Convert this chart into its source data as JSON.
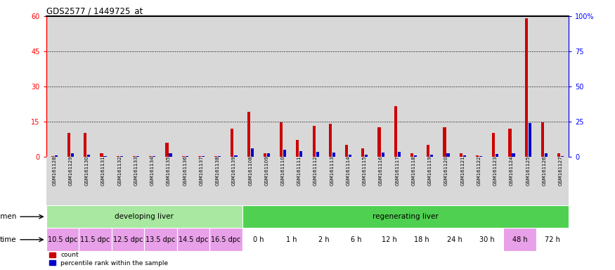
{
  "title": "GDS2577 / 1449725_at",
  "samples": [
    "GSM161128",
    "GSM161129",
    "GSM161130",
    "GSM161131",
    "GSM161132",
    "GSM161133",
    "GSM161134",
    "GSM161135",
    "GSM161136",
    "GSM161137",
    "GSM161138",
    "GSM161139",
    "GSM161108",
    "GSM161109",
    "GSM161110",
    "GSM161111",
    "GSM161112",
    "GSM161113",
    "GSM161114",
    "GSM161115",
    "GSM161116",
    "GSM161117",
    "GSM161118",
    "GSM161119",
    "GSM161120",
    "GSM161121",
    "GSM161122",
    "GSM161123",
    "GSM161124",
    "GSM161125",
    "GSM161126",
    "GSM161127"
  ],
  "count_values": [
    0.3,
    10.0,
    10.0,
    1.5,
    0.3,
    0.3,
    0.3,
    6.0,
    0.3,
    0.3,
    0.3,
    12.0,
    19.0,
    1.5,
    14.5,
    7.0,
    13.0,
    14.0,
    5.0,
    3.5,
    12.5,
    21.5,
    1.5,
    5.0,
    12.5,
    1.5,
    0.5,
    10.0,
    12.0,
    59.0,
    14.5,
    1.5
  ],
  "percentile_values": [
    1.0,
    2.5,
    1.5,
    0.5,
    0.3,
    0.3,
    0.3,
    2.5,
    0.3,
    0.3,
    0.5,
    1.0,
    6.0,
    2.5,
    5.0,
    4.0,
    3.5,
    3.0,
    1.5,
    1.5,
    3.0,
    3.5,
    1.0,
    1.5,
    2.5,
    1.0,
    0.3,
    2.0,
    2.5,
    24.0,
    2.5,
    0.5
  ],
  "specimen_groups": [
    {
      "label": "developing liver",
      "color": "#a8e8a0",
      "start": 0,
      "end": 12
    },
    {
      "label": "regenerating liver",
      "color": "#50d050",
      "start": 12,
      "end": 32
    }
  ],
  "time_labels": [
    {
      "label": "10.5 dpc",
      "start": 0,
      "end": 2,
      "color": "#e8a0e8"
    },
    {
      "label": "11.5 dpc",
      "start": 2,
      "end": 4,
      "color": "#e8a0e8"
    },
    {
      "label": "12.5 dpc",
      "start": 4,
      "end": 6,
      "color": "#e8a0e8"
    },
    {
      "label": "13.5 dpc",
      "start": 6,
      "end": 8,
      "color": "#e8a0e8"
    },
    {
      "label": "14.5 dpc",
      "start": 8,
      "end": 10,
      "color": "#e8a0e8"
    },
    {
      "label": "16.5 dpc",
      "start": 10,
      "end": 12,
      "color": "#e8a0e8"
    },
    {
      "label": "0 h",
      "start": 12,
      "end": 14,
      "color": "#ffffff"
    },
    {
      "label": "1 h",
      "start": 14,
      "end": 16,
      "color": "#ffffff"
    },
    {
      "label": "2 h",
      "start": 16,
      "end": 18,
      "color": "#ffffff"
    },
    {
      "label": "6 h",
      "start": 18,
      "end": 20,
      "color": "#ffffff"
    },
    {
      "label": "12 h",
      "start": 20,
      "end": 22,
      "color": "#ffffff"
    },
    {
      "label": "18 h",
      "start": 22,
      "end": 24,
      "color": "#ffffff"
    },
    {
      "label": "24 h",
      "start": 24,
      "end": 26,
      "color": "#ffffff"
    },
    {
      "label": "30 h",
      "start": 26,
      "end": 28,
      "color": "#ffffff"
    },
    {
      "label": "48 h",
      "start": 28,
      "end": 30,
      "color": "#e8a0e8"
    },
    {
      "label": "72 h",
      "start": 30,
      "end": 32,
      "color": "#ffffff"
    }
  ],
  "ylim_left": [
    0,
    60
  ],
  "yticks_left": [
    0,
    15,
    30,
    45,
    60
  ],
  "ylim_right": [
    0,
    100
  ],
  "yticks_right": [
    0,
    25,
    50,
    75,
    100
  ],
  "bar_color_count": "#cc0000",
  "bar_color_pct": "#0000cc",
  "bar_width": 0.18,
  "sample_bg_color": "#d8d8d8",
  "chart_bg_color": "#ffffff",
  "gridline_color": "#000000"
}
